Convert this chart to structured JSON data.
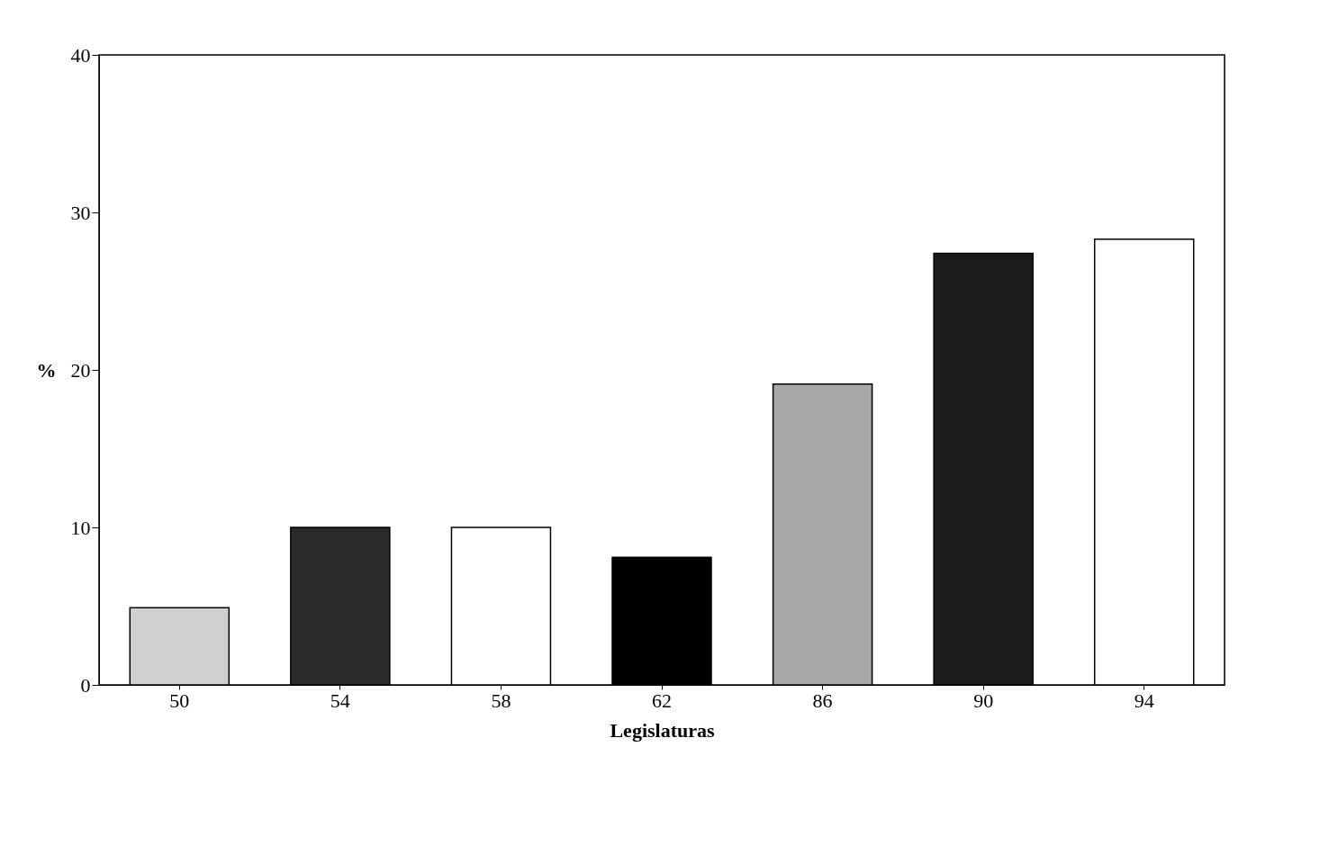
{
  "chart_data": {
    "type": "bar",
    "xlabel": "Legislaturas",
    "ylabel": "%",
    "categories": [
      "50",
      "54",
      "58",
      "62",
      "86",
      "90",
      "94"
    ],
    "values": [
      4.9,
      10.0,
      10.0,
      8.1,
      19.1,
      27.4,
      28.3
    ],
    "colors": [
      "#d0d0d0",
      "#2a2a2a",
      "#ffffff",
      "#000000",
      "#a8a8a8",
      "#1c1c1c",
      "#ffffff"
    ],
    "ylim": [
      0,
      40
    ],
    "yticks": [
      0,
      10,
      20,
      30,
      40
    ],
    "grid": false
  }
}
